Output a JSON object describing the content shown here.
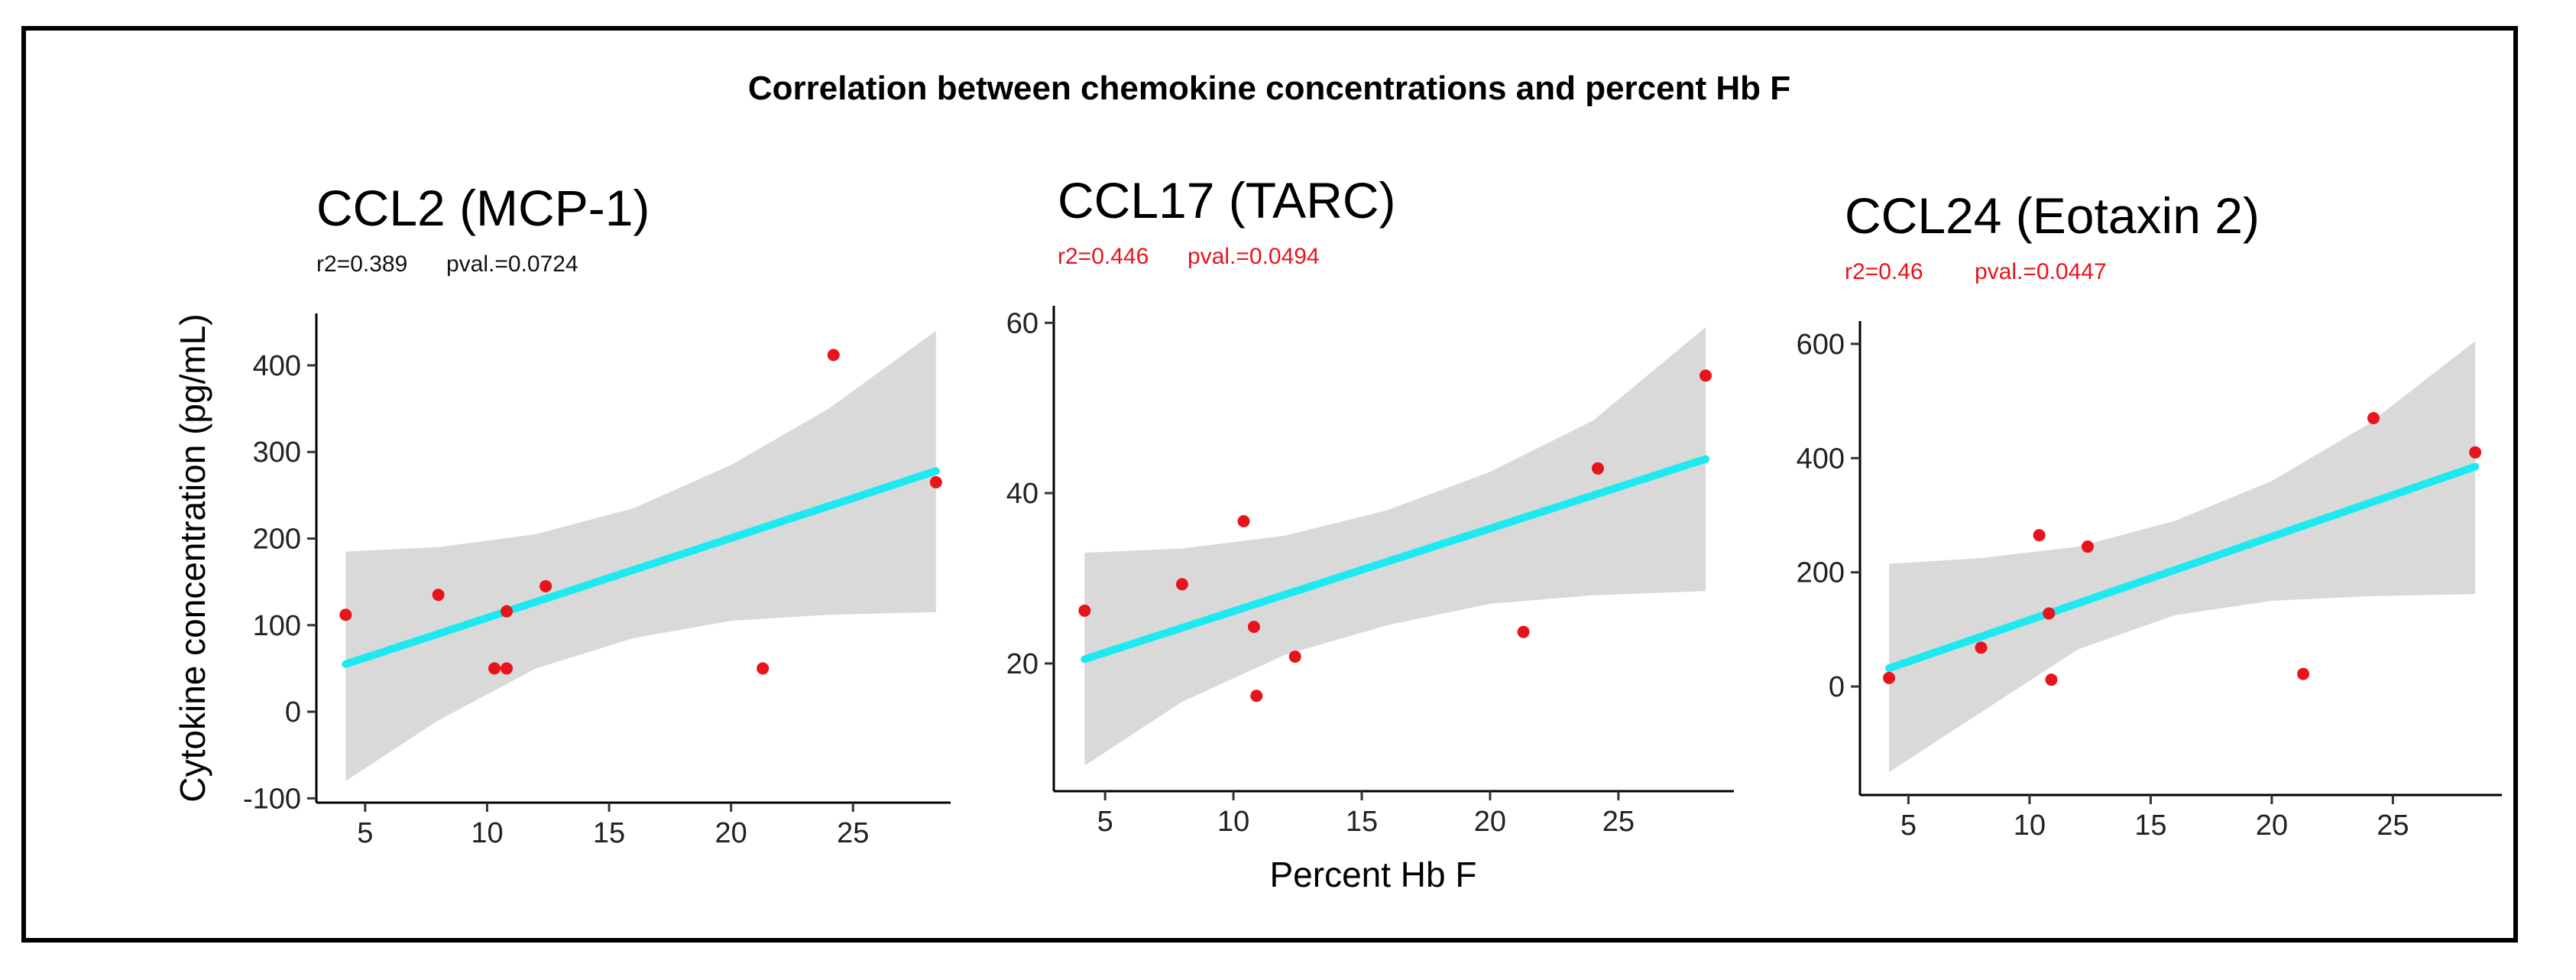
{
  "chart_data": {
    "type": "scatter",
    "title": "Correlation between chemokine  concentrations and percent Hb F",
    "xlabel": "Percent Hb F",
    "ylabel": "Cytokine concentration (pg/mL)",
    "colors": {
      "points": "#e8141c",
      "fit": "#1de9f0",
      "ci": "#d9d9d9",
      "stat_significant": "#e8141c",
      "stat_default": "#111111"
    },
    "panels": [
      {
        "id": "ccl2",
        "title": "CCL2 (MCP-1)",
        "r2_label": "r2=0.389",
        "pval_label": "pval.=0.0724",
        "significant": false,
        "xlim": [
          3,
          29
        ],
        "ylim": [
          -105,
          460
        ],
        "xticks": [
          5,
          10,
          15,
          20,
          25
        ],
        "yticks": [
          -100,
          0,
          100,
          200,
          300,
          400
        ],
        "points": [
          {
            "x": 4.2,
            "y": 112
          },
          {
            "x": 8.0,
            "y": 135
          },
          {
            "x": 10.3,
            "y": 50
          },
          {
            "x": 10.8,
            "y": 50
          },
          {
            "x": 10.8,
            "y": 116
          },
          {
            "x": 12.4,
            "y": 145
          },
          {
            "x": 21.3,
            "y": 50
          },
          {
            "x": 24.2,
            "y": 412
          },
          {
            "x": 28.4,
            "y": 265
          }
        ],
        "fit": {
          "x": [
            4.2,
            28.4
          ],
          "y": [
            55,
            278
          ]
        },
        "ci": {
          "x": [
            4.2,
            8,
            12,
            16,
            20,
            24,
            28.4
          ],
          "upper": [
            185,
            190,
            205,
            235,
            285,
            350,
            440
          ],
          "lower": [
            -80,
            -10,
            50,
            85,
            105,
            112,
            115
          ]
        }
      },
      {
        "id": "ccl17",
        "title": "CCL17 (TARC)",
        "r2_label": "r2=0.446",
        "pval_label": "pval.=0.0494",
        "significant": true,
        "xlim": [
          3,
          29.5
        ],
        "ylim": [
          5,
          62
        ],
        "xticks": [
          5,
          10,
          15,
          20,
          25
        ],
        "yticks": [
          20,
          40,
          60
        ],
        "points": [
          {
            "x": 4.2,
            "y": 26.2
          },
          {
            "x": 8.0,
            "y": 29.3
          },
          {
            "x": 10.4,
            "y": 36.7
          },
          {
            "x": 10.8,
            "y": 24.3
          },
          {
            "x": 10.9,
            "y": 16.2
          },
          {
            "x": 12.4,
            "y": 20.8
          },
          {
            "x": 21.3,
            "y": 23.7
          },
          {
            "x": 24.2,
            "y": 42.9
          },
          {
            "x": 28.4,
            "y": 53.8
          }
        ],
        "fit": {
          "x": [
            4.2,
            28.4
          ],
          "y": [
            20.5,
            44
          ]
        },
        "ci": {
          "x": [
            4.2,
            8,
            12,
            16,
            20,
            24,
            28.4
          ],
          "upper": [
            33,
            33.5,
            35,
            38,
            42.5,
            48.5,
            59.5
          ],
          "lower": [
            8,
            15.5,
            21,
            24.5,
            27,
            28,
            28.5
          ]
        }
      },
      {
        "id": "ccl24",
        "title": "CCL24 (Eotaxin 2)",
        "r2_label": "r2=0.46",
        "pval_label": "pval.=0.0447",
        "significant": true,
        "xlim": [
          3,
          29.5
        ],
        "ylim": [
          -190,
          640
        ],
        "xticks": [
          5,
          10,
          15,
          20,
          25
        ],
        "yticks": [
          0,
          200,
          400,
          600
        ],
        "points": [
          {
            "x": 4.2,
            "y": 15
          },
          {
            "x": 8.0,
            "y": 68
          },
          {
            "x": 10.4,
            "y": 265
          },
          {
            "x": 10.8,
            "y": 128
          },
          {
            "x": 10.9,
            "y": 12
          },
          {
            "x": 12.4,
            "y": 245
          },
          {
            "x": 21.3,
            "y": 22
          },
          {
            "x": 24.2,
            "y": 470
          },
          {
            "x": 28.4,
            "y": 410
          }
        ],
        "fit": {
          "x": [
            4.2,
            28.4
          ],
          "y": [
            32,
            385
          ]
        },
        "ci": {
          "x": [
            4.2,
            8,
            12,
            16,
            20,
            24,
            28.4
          ],
          "upper": [
            215,
            225,
            245,
            290,
            360,
            460,
            605
          ],
          "lower": [
            -150,
            -45,
            65,
            125,
            150,
            158,
            162
          ]
        }
      }
    ]
  }
}
